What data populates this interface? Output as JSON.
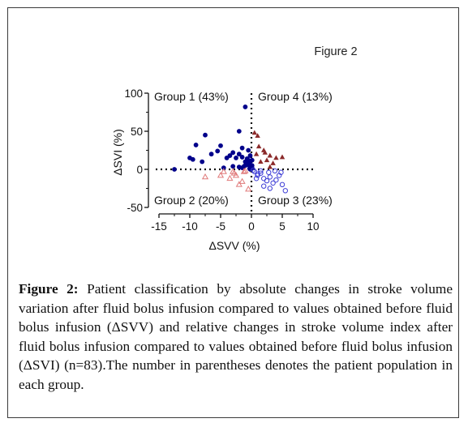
{
  "figure_label": "Figure 2",
  "caption": {
    "lead": "Figure 2:",
    "text": " Patient classification by absolute changes in stroke volume variation after fluid bolus infusion compared to values obtained before fluid bolus infusion (ΔSVV) and relative changes in stroke volume index after fluid bolus infusion compared to values obtained before fluid bolus infusion (ΔSVI) (n=83).The number in parentheses denotes the patient population in each group."
  },
  "chart_data": {
    "type": "scatter",
    "xlabel": "ΔSVV (%)",
    "ylabel": "ΔSVI (%)",
    "xlim": [
      -15,
      10
    ],
    "ylim": [
      -50,
      100
    ],
    "xticks": [
      "-15",
      "-10",
      "-5",
      "0",
      "5",
      "10"
    ],
    "yticks": [
      "100",
      "50",
      "0",
      "-50"
    ],
    "reference_lines": {
      "x": 0,
      "y": 0,
      "style": "dotted"
    },
    "quadrant_labels": {
      "group1": "Group 1 (43%)",
      "group2": "Group 2 (20%)",
      "group3": "Group 3 (23%)",
      "group4": "Group 4 (13%)"
    },
    "colors": {
      "group1": "#00008b",
      "group2": "#e07a7a",
      "group3": "#3d3dd6",
      "group4": "#8b2a2a"
    },
    "series": [
      {
        "marker": "filled-circle",
        "color": "#00008b",
        "x": [
          -12.5,
          -9.5,
          -9,
          -7.5,
          -5,
          -2,
          -1,
          -10,
          -8,
          -6.5,
          -5.5,
          -4,
          -3.5,
          -3,
          -2.5,
          -2,
          -1.5,
          -1,
          -0.5,
          -0.3,
          -0.2,
          0.1,
          -4.5,
          -3,
          -2,
          -1.5,
          -1,
          -0.5,
          -0.3,
          -0.2,
          0.1,
          -0.4,
          -0.1,
          -0.6,
          -0.8,
          -1.2,
          -0.9,
          -0.7,
          0.1,
          -0.2,
          -0.5,
          -1.5
        ],
        "y": [
          0,
          13,
          32,
          45,
          31,
          50,
          82,
          15,
          10,
          20,
          24,
          15,
          18,
          22,
          15,
          20,
          16,
          10,
          12,
          8,
          6,
          5,
          2,
          4,
          3,
          2,
          5,
          6,
          1,
          0,
          2,
          8,
          3,
          7,
          9,
          4,
          10,
          14,
          12,
          18,
          25,
          28
        ]
      },
      {
        "marker": "open-triangle",
        "color": "#e07a7a",
        "x": [
          -7.5,
          -5,
          -4.5,
          -3,
          -2.5,
          -2,
          -1.5,
          -1.2,
          -1,
          -0.5,
          -3.5,
          -2.8
        ],
        "y": [
          -10,
          -8,
          -3,
          -3,
          -8,
          -20,
          -16,
          -3,
          -2,
          -26,
          -12,
          -5
        ]
      },
      {
        "marker": "open-circle",
        "color": "#3d3dd6",
        "x": [
          0.5,
          1,
          1.5,
          2,
          2.5,
          3,
          3.5,
          4,
          4.5,
          5,
          5.5,
          3,
          2,
          1.5,
          1,
          0.8,
          2.8,
          3.8,
          4.8,
          0.3
        ],
        "y": [
          -3,
          -8,
          -5,
          -12,
          -15,
          -10,
          -18,
          -14,
          -8,
          -20,
          -28,
          -25,
          -22,
          -2,
          -6,
          -12,
          -4,
          -2,
          -4,
          -1
        ]
      },
      {
        "marker": "filled-triangle",
        "color": "#8b2a2a",
        "x": [
          0.5,
          1,
          1.2,
          2,
          2.5,
          3,
          3.5,
          4,
          5,
          0.8,
          1.5,
          3,
          2.2
        ],
        "y": [
          48,
          44,
          30,
          25,
          12,
          18,
          8,
          15,
          16,
          20,
          10,
          3,
          22
        ]
      }
    ]
  }
}
